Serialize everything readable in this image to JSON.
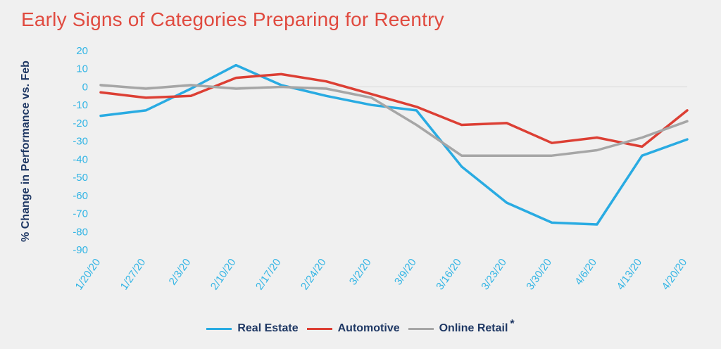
{
  "chart_data": {
    "type": "line",
    "title": "Early Signs of Categories Preparing for Reentry",
    "ylabel": "% Change in Performance vs. Feb",
    "xlabel": "",
    "categories": [
      "1/20/20",
      "1/27/20",
      "2/3/20",
      "2/10/20",
      "2/17/20",
      "2/24/20",
      "3/2/20",
      "3/9/20",
      "3/16/20",
      "3/23/20",
      "3/30/20",
      "4/6/20",
      "4/13/20",
      "4/20/20"
    ],
    "yticks": [
      20,
      10,
      0,
      -10,
      -20,
      -30,
      -40,
      -50,
      -60,
      -70,
      -80,
      -90
    ],
    "ylim": [
      -90,
      20
    ],
    "grid": false,
    "zero_line": true,
    "legend_position": "bottom-center",
    "series": [
      {
        "name": "Real Estate",
        "color": "#29abe2",
        "values": [
          -16,
          -13,
          -1,
          12,
          1,
          -5,
          -10,
          -13,
          -44,
          -64,
          -75,
          -76,
          -38,
          -29
        ]
      },
      {
        "name": "Automotive",
        "color": "#dc3f34",
        "values": [
          -3,
          -6,
          -5,
          5,
          7,
          3,
          -4,
          -11,
          -21,
          -20,
          -31,
          -28,
          -33,
          -13
        ]
      },
      {
        "name": "Online Retail",
        "color": "#a6a6a6",
        "values": [
          1,
          -1,
          1,
          -1,
          0,
          -1,
          -6,
          -21,
          -38,
          -38,
          -38,
          -35,
          -28,
          -19
        ]
      }
    ],
    "legend_note": "*"
  }
}
